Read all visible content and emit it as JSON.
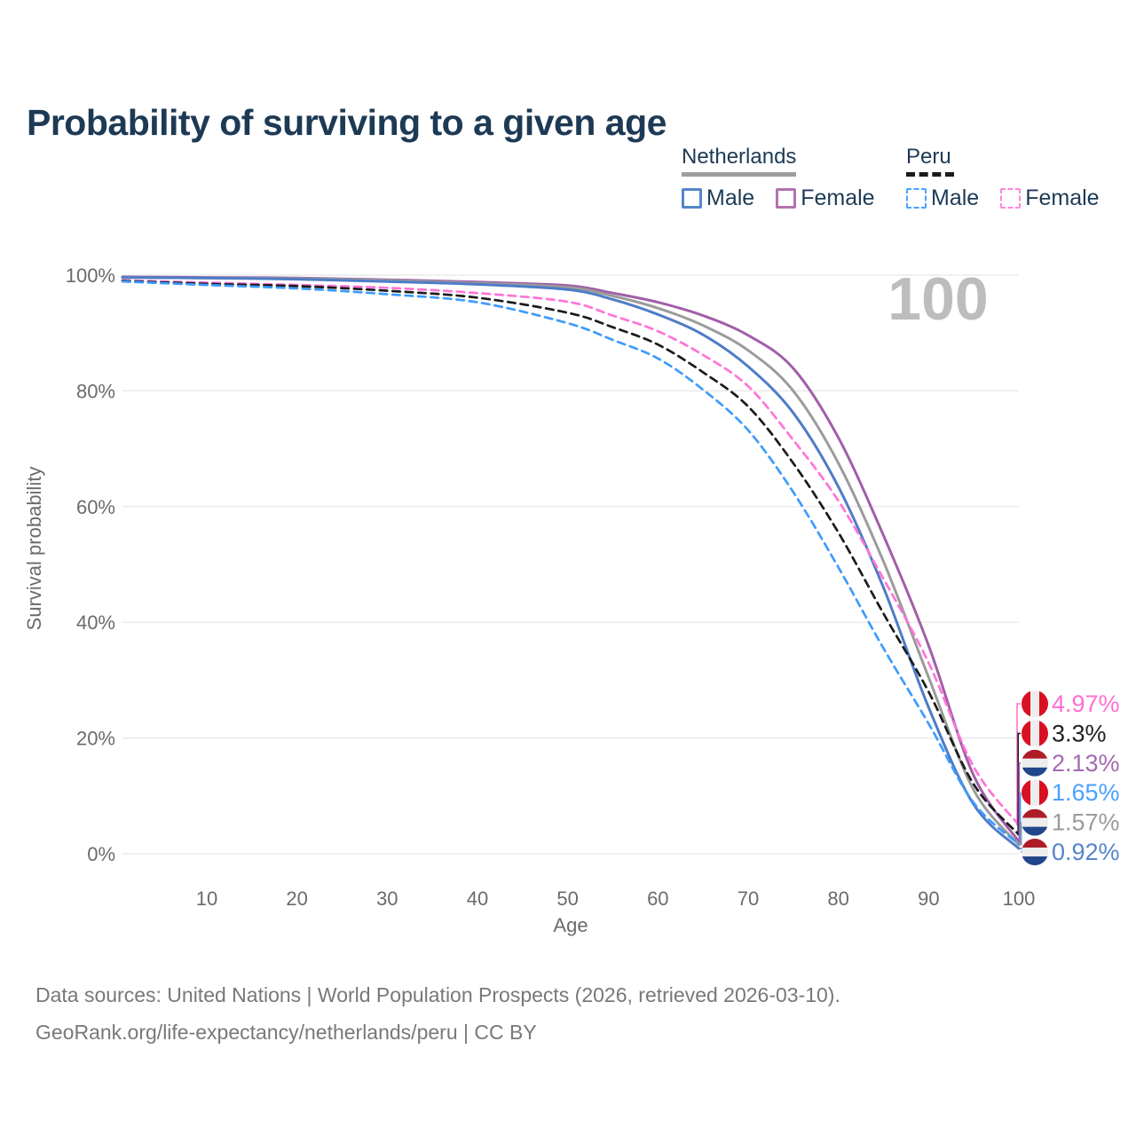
{
  "title": "Probability of surviving to a given age",
  "legend": {
    "groups": [
      {
        "label": "Netherlands",
        "underline_style": "solid",
        "underline_color": "#9e9e9e",
        "items": [
          {
            "label": "Male",
            "box_color": "#5585c9",
            "dashed": false
          },
          {
            "label": "Female",
            "box_color": "#b173ae",
            "dashed": false
          }
        ]
      },
      {
        "label": "Peru",
        "underline_style": "dashed",
        "underline_color": "#1a1a1a",
        "items": [
          {
            "label": "Male",
            "box_color": "#4aa0ff",
            "dashed": true
          },
          {
            "label": "Female",
            "box_color": "#ff85dd",
            "dashed": true
          }
        ]
      }
    ]
  },
  "chart_data": {
    "type": "line",
    "title": "Probability of surviving to a given age",
    "xlabel": "Age",
    "ylabel": "Survival probability",
    "xlim": [
      0,
      100
    ],
    "ylim": [
      0,
      100
    ],
    "grid": "horizontal-only",
    "watermark": "100",
    "x_tick_labels": [
      "10",
      "20",
      "30",
      "40",
      "50",
      "60",
      "70",
      "80",
      "90",
      "100"
    ],
    "x_tick_values": [
      10,
      20,
      30,
      40,
      50,
      60,
      70,
      80,
      90,
      100
    ],
    "y_tick_labels": [
      "0%",
      "20%",
      "40%",
      "60%",
      "80%",
      "100%"
    ],
    "y_tick_values": [
      0,
      20,
      40,
      60,
      80,
      100
    ],
    "ages": [
      1,
      10,
      20,
      30,
      40,
      50,
      55,
      60,
      65,
      70,
      75,
      80,
      85,
      90,
      95,
      100
    ],
    "series": [
      {
        "name": "Netherlands Female",
        "country": "netherlands",
        "sex": "female",
        "color": "#a05fa8",
        "dashed": false,
        "values": [
          99.7,
          99.6,
          99.5,
          99.2,
          98.8,
          98.2,
          96.9,
          95.3,
          93.0,
          89.6,
          83.9,
          71.9,
          55.0,
          36.0,
          13.5,
          2.13
        ],
        "end_value_label": "2.13%"
      },
      {
        "name": "Netherlands",
        "country": "netherlands",
        "sex": "both",
        "color": "#9b9b9b",
        "dashed": false,
        "values": [
          99.6,
          99.5,
          99.4,
          99.1,
          98.6,
          97.9,
          96.4,
          94.3,
          91.3,
          87.0,
          80.0,
          67.5,
          50.5,
          30.5,
          11.0,
          1.57
        ],
        "end_value_label": "1.57%"
      },
      {
        "name": "Netherlands Male",
        "country": "netherlands",
        "sex": "male",
        "color": "#4e7cc7",
        "dashed": false,
        "values": [
          99.6,
          99.5,
          99.3,
          98.9,
          98.4,
          97.5,
          95.8,
          93.2,
          89.7,
          84.2,
          76.2,
          63.4,
          46.0,
          25.3,
          8.5,
          0.92
        ],
        "end_value_label": "0.92%"
      },
      {
        "name": "Peru Female",
        "country": "peru",
        "sex": "female",
        "color": "#ff74d7",
        "dashed": true,
        "values": [
          99.1,
          98.7,
          98.3,
          97.8,
          96.9,
          95.4,
          93.0,
          90.3,
          86.2,
          80.8,
          71.5,
          61.0,
          47.5,
          33.0,
          15.0,
          4.97
        ],
        "end_value_label": "4.97%"
      },
      {
        "name": "Peru",
        "country": "peru",
        "sex": "both",
        "color": "#1b1b1b",
        "dashed": true,
        "values": [
          99.0,
          98.5,
          98.1,
          97.3,
          96.1,
          93.5,
          91.0,
          88.0,
          83.2,
          77.3,
          67.5,
          55.5,
          41.5,
          28.0,
          12.0,
          3.3
        ],
        "end_value_label": "3.3%"
      },
      {
        "name": "Peru Male",
        "country": "peru",
        "sex": "male",
        "color": "#3e9bfc",
        "dashed": true,
        "values": [
          98.9,
          98.3,
          97.7,
          96.7,
          95.3,
          91.7,
          88.8,
          85.6,
          80.2,
          73.2,
          62.5,
          49.5,
          35.5,
          22.5,
          8.8,
          1.65
        ],
        "end_value_label": "1.65%"
      }
    ],
    "end_labels": [
      {
        "value": "4.97%",
        "series": "Peru Female",
        "flag": "peru",
        "text_color": "#ff6fd3"
      },
      {
        "value": "3.3%",
        "series": "Peru",
        "flag": "peru",
        "text_color": "#222222"
      },
      {
        "value": "2.13%",
        "series": "Netherlands Female",
        "flag": "netherlands",
        "text_color": "#a46ab2"
      },
      {
        "value": "1.65%",
        "series": "Peru Male",
        "flag": "peru",
        "text_color": "#4aa0ff"
      },
      {
        "value": "1.57%",
        "series": "Netherlands",
        "flag": "netherlands",
        "text_color": "#9b9b9b"
      },
      {
        "value": "0.92%",
        "series": "Netherlands Male",
        "flag": "netherlands",
        "text_color": "#5585c9"
      }
    ],
    "flag_colors": {
      "peru_red": "#d91023",
      "nl_red": "#ae1c28",
      "nl_blue": "#21468b",
      "flag_white": "#ededed"
    }
  },
  "axis_style": {
    "tick_color": "#6b6b6b",
    "grid_color": "#e6e6e6",
    "watermark_color": "#bdbdbd"
  },
  "footer": {
    "line1": "Data sources: United Nations | World Population Prospects (2026, retrieved 2026-03-10).",
    "line2": "GeoRank.org/life-expectancy/netherlands/peru | CC BY"
  }
}
